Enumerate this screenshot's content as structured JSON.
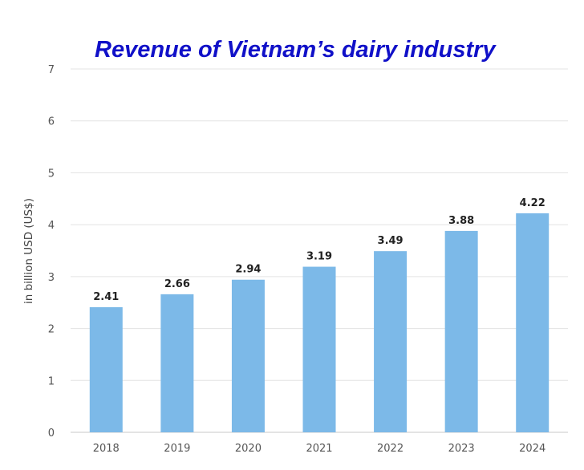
{
  "chart_data": {
    "type": "bar",
    "title": "Revenue of Vietnam’s dairy industry",
    "xlabel": "",
    "ylabel": "in billion USD (US$)",
    "categories": [
      "2018",
      "2019",
      "2020",
      "2021",
      "2022",
      "2023",
      "2024"
    ],
    "values": [
      2.41,
      2.66,
      2.94,
      3.19,
      3.49,
      3.88,
      4.22
    ],
    "data_labels": [
      "2.41",
      "2.66",
      "2.94",
      "3.19",
      "3.49",
      "3.88",
      "4.22"
    ],
    "ylim": [
      0,
      7
    ],
    "yticks": [
      "0",
      "1",
      "2",
      "3",
      "4",
      "5",
      "6",
      "7"
    ],
    "grid": true,
    "bar_color": "#7cb9e8",
    "title_color": "#1010c8"
  }
}
